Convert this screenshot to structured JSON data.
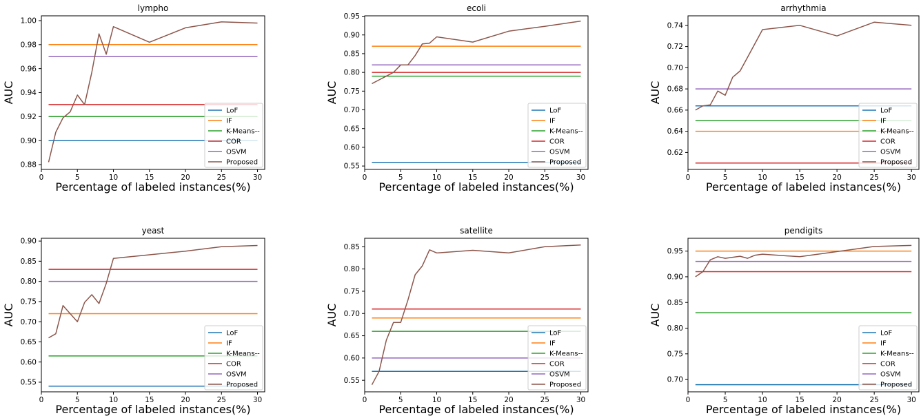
{
  "colors": {
    "LoF": "#1f77b4",
    "IF": "#ff7f0e",
    "K-Means--": "#2ca02c",
    "COR": "#d62728",
    "OSVM": "#9467bd",
    "Proposed": "#8c564b"
  },
  "chart_data": [
    {
      "type": "line",
      "title": "lympho",
      "xlabel": "Percentage of labeled instances(%)",
      "ylabel": "AUC",
      "xlim": [
        0,
        31
      ],
      "ylim": [
        0.876,
        1.004
      ],
      "xticks": [
        0,
        5,
        10,
        15,
        20,
        25,
        30
      ],
      "yticks": [
        0.88,
        0.9,
        0.92,
        0.94,
        0.96,
        0.98,
        1.0
      ],
      "ytick_labels": [
        "0.88",
        "0.90",
        "0.92",
        "0.94",
        "0.96",
        "0.98",
        "1.00"
      ],
      "legend_position": "lower right",
      "series": [
        {
          "name": "LoF",
          "x": [
            1,
            30
          ],
          "y": [
            0.9,
            0.9
          ]
        },
        {
          "name": "IF",
          "x": [
            1,
            30
          ],
          "y": [
            0.98,
            0.98
          ]
        },
        {
          "name": "K-Means--",
          "x": [
            1,
            30
          ],
          "y": [
            0.92,
            0.92
          ]
        },
        {
          "name": "COR",
          "x": [
            1,
            30
          ],
          "y": [
            0.93,
            0.93
          ]
        },
        {
          "name": "OSVM",
          "x": [
            1,
            30
          ],
          "y": [
            0.97,
            0.97
          ]
        },
        {
          "name": "Proposed",
          "x": [
            1,
            2,
            3,
            4,
            5,
            6,
            7,
            8,
            9,
            10,
            15,
            20,
            25,
            30
          ],
          "y": [
            0.882,
            0.907,
            0.919,
            0.924,
            0.938,
            0.93,
            0.957,
            0.989,
            0.972,
            0.995,
            0.982,
            0.994,
            0.999,
            0.998
          ]
        }
      ]
    },
    {
      "type": "line",
      "title": "ecoli",
      "xlabel": "Percentage of labeled instances(%)",
      "ylabel": "AUC",
      "xlim": [
        0,
        31
      ],
      "ylim": [
        0.541,
        0.951
      ],
      "xticks": [
        0,
        5,
        10,
        15,
        20,
        25,
        30
      ],
      "yticks": [
        0.55,
        0.6,
        0.65,
        0.7,
        0.75,
        0.8,
        0.85,
        0.9,
        0.95
      ],
      "ytick_labels": [
        "0.55",
        "0.60",
        "0.65",
        "0.70",
        "0.75",
        "0.80",
        "0.85",
        "0.90",
        "0.95"
      ],
      "legend_position": "lower right",
      "series": [
        {
          "name": "LoF",
          "x": [
            1,
            30
          ],
          "y": [
            0.56,
            0.56
          ]
        },
        {
          "name": "IF",
          "x": [
            1,
            30
          ],
          "y": [
            0.87,
            0.87
          ]
        },
        {
          "name": "K-Means--",
          "x": [
            1,
            30
          ],
          "y": [
            0.79,
            0.79
          ]
        },
        {
          "name": "COR",
          "x": [
            1,
            30
          ],
          "y": [
            0.8,
            0.8
          ]
        },
        {
          "name": "OSVM",
          "x": [
            1,
            30
          ],
          "y": [
            0.82,
            0.82
          ]
        },
        {
          "name": "Proposed",
          "x": [
            1,
            2,
            3,
            4,
            5,
            6,
            7,
            8,
            9,
            10,
            15,
            20,
            25,
            30
          ],
          "y": [
            0.77,
            0.78,
            0.79,
            0.8,
            0.82,
            0.82,
            0.845,
            0.876,
            0.878,
            0.895,
            0.881,
            0.91,
            0.923,
            0.937
          ]
        }
      ]
    },
    {
      "type": "line",
      "title": "arrhythmia",
      "xlabel": "Percentage of labeled instances(%)",
      "ylabel": "AUC",
      "xlim": [
        0,
        31
      ],
      "ylim": [
        0.604,
        0.749
      ],
      "xticks": [
        0,
        5,
        10,
        15,
        20,
        25,
        30
      ],
      "yticks": [
        0.62,
        0.64,
        0.66,
        0.68,
        0.7,
        0.72,
        0.74
      ],
      "ytick_labels": [
        "0.62",
        "0.64",
        "0.66",
        "0.68",
        "0.70",
        "0.72",
        "0.74"
      ],
      "legend_position": "lower right",
      "series": [
        {
          "name": "LoF",
          "x": [
            1,
            30
          ],
          "y": [
            0.664,
            0.664
          ]
        },
        {
          "name": "IF",
          "x": [
            1,
            30
          ],
          "y": [
            0.64,
            0.64
          ]
        },
        {
          "name": "K-Means--",
          "x": [
            1,
            30
          ],
          "y": [
            0.65,
            0.65
          ]
        },
        {
          "name": "COR",
          "x": [
            1,
            30
          ],
          "y": [
            0.61,
            0.61
          ]
        },
        {
          "name": "OSVM",
          "x": [
            1,
            30
          ],
          "y": [
            0.68,
            0.68
          ]
        },
        {
          "name": "Proposed",
          "x": [
            1,
            2,
            3,
            4,
            5,
            6,
            7,
            8,
            9,
            10,
            15,
            20,
            25,
            30
          ],
          "y": [
            0.66,
            0.664,
            0.665,
            0.678,
            0.674,
            0.691,
            0.697,
            0.71,
            0.723,
            0.736,
            0.74,
            0.73,
            0.743,
            0.74
          ]
        }
      ]
    },
    {
      "type": "line",
      "title": "yeast",
      "xlabel": "Percentage of labeled instances(%)",
      "ylabel": "AUC",
      "xlim": [
        0,
        31
      ],
      "ylim": [
        0.526,
        0.907
      ],
      "xticks": [
        0,
        5,
        10,
        15,
        20,
        25,
        30
      ],
      "yticks": [
        0.55,
        0.6,
        0.65,
        0.7,
        0.75,
        0.8,
        0.85,
        0.9
      ],
      "ytick_labels": [
        "0.55",
        "0.60",
        "0.65",
        "0.70",
        "0.75",
        "0.80",
        "0.85",
        "0.90"
      ],
      "legend_position": "lower right",
      "series": [
        {
          "name": "LoF",
          "x": [
            1,
            30
          ],
          "y": [
            0.54,
            0.54
          ]
        },
        {
          "name": "IF",
          "x": [
            1,
            30
          ],
          "y": [
            0.72,
            0.72
          ]
        },
        {
          "name": "K-Means--",
          "x": [
            1,
            30
          ],
          "y": [
            0.615,
            0.615
          ]
        },
        {
          "name": "COR",
          "x": [
            1,
            30
          ],
          "y": [
            0.83,
            0.83
          ]
        },
        {
          "name": "OSVM",
          "x": [
            1,
            30
          ],
          "y": [
            0.8,
            0.8
          ]
        },
        {
          "name": "Proposed",
          "x": [
            1,
            2,
            3,
            4,
            5,
            6,
            7,
            8,
            9,
            10,
            15,
            20,
            25,
            30
          ],
          "y": [
            0.66,
            0.67,
            0.74,
            0.72,
            0.7,
            0.748,
            0.767,
            0.745,
            0.795,
            0.857,
            0.866,
            0.875,
            0.886,
            0.889
          ]
        }
      ]
    },
    {
      "type": "line",
      "title": "satellite",
      "xlabel": "Percentage of labeled instances(%)",
      "ylabel": "AUC",
      "xlim": [
        0,
        31
      ],
      "ylim": [
        0.524,
        0.869
      ],
      "xticks": [
        0,
        5,
        10,
        15,
        20,
        25,
        30
      ],
      "yticks": [
        0.55,
        0.6,
        0.65,
        0.7,
        0.75,
        0.8,
        0.85
      ],
      "ytick_labels": [
        "0.55",
        "0.60",
        "0.65",
        "0.70",
        "0.75",
        "0.80",
        "0.85"
      ],
      "legend_position": "lower right",
      "series": [
        {
          "name": "LoF",
          "x": [
            1,
            30
          ],
          "y": [
            0.57,
            0.57
          ]
        },
        {
          "name": "IF",
          "x": [
            1,
            30
          ],
          "y": [
            0.69,
            0.69
          ]
        },
        {
          "name": "K-Means--",
          "x": [
            1,
            30
          ],
          "y": [
            0.66,
            0.66
          ]
        },
        {
          "name": "COR",
          "x": [
            1,
            30
          ],
          "y": [
            0.71,
            0.71
          ]
        },
        {
          "name": "OSVM",
          "x": [
            1,
            30
          ],
          "y": [
            0.6,
            0.6
          ]
        },
        {
          "name": "Proposed",
          "x": [
            1,
            2,
            3,
            4,
            5,
            6,
            7,
            8,
            9,
            10,
            15,
            20,
            25,
            30
          ],
          "y": [
            0.54,
            0.57,
            0.64,
            0.68,
            0.68,
            0.73,
            0.787,
            0.807,
            0.843,
            0.836,
            0.842,
            0.836,
            0.85,
            0.854
          ]
        }
      ]
    },
    {
      "type": "line",
      "title": "pendigits",
      "xlabel": "Percentage of labeled instances(%)",
      "ylabel": "AUC",
      "xlim": [
        0,
        31
      ],
      "ylim": [
        0.676,
        0.975
      ],
      "xticks": [
        0,
        5,
        10,
        15,
        20,
        25,
        30
      ],
      "yticks": [
        0.7,
        0.75,
        0.8,
        0.85,
        0.9,
        0.95
      ],
      "ytick_labels": [
        "0.70",
        "0.75",
        "0.80",
        "0.85",
        "0.90",
        "0.95"
      ],
      "legend_position": "lower right",
      "series": [
        {
          "name": "LoF",
          "x": [
            1,
            30
          ],
          "y": [
            0.69,
            0.69
          ]
        },
        {
          "name": "IF",
          "x": [
            1,
            30
          ],
          "y": [
            0.95,
            0.95
          ]
        },
        {
          "name": "K-Means--",
          "x": [
            1,
            30
          ],
          "y": [
            0.83,
            0.83
          ]
        },
        {
          "name": "COR",
          "x": [
            1,
            30
          ],
          "y": [
            0.91,
            0.91
          ]
        },
        {
          "name": "OSVM",
          "x": [
            1,
            30
          ],
          "y": [
            0.93,
            0.93
          ]
        },
        {
          "name": "Proposed",
          "x": [
            1,
            2,
            3,
            4,
            5,
            6,
            7,
            8,
            9,
            10,
            15,
            20,
            25,
            30
          ],
          "y": [
            0.9,
            0.91,
            0.933,
            0.939,
            0.936,
            0.938,
            0.94,
            0.936,
            0.942,
            0.944,
            0.939,
            0.949,
            0.959,
            0.961
          ]
        }
      ]
    }
  ]
}
